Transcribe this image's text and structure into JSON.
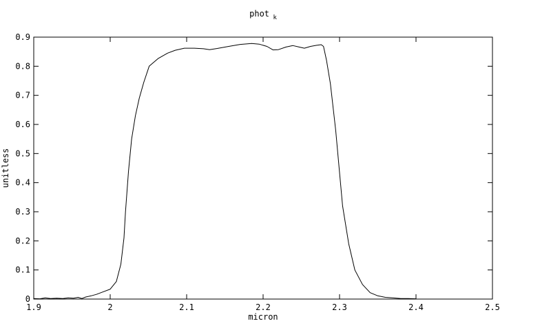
{
  "page": {
    "background": "#ffffff",
    "foreground": "#000000"
  },
  "chart_data": {
    "type": "line",
    "title_main": "phot",
    "title_sub": "k",
    "xlabel": "micron",
    "ylabel": "unitless",
    "xlim": [
      1.9,
      2.5
    ],
    "ylim": [
      0,
      0.9
    ],
    "grid": false,
    "legend": "none",
    "line_color": "#000000",
    "x_ticks": [
      {
        "value": 1.9,
        "label": "1.9"
      },
      {
        "value": 2.0,
        "label": "2"
      },
      {
        "value": 2.1,
        "label": "2.1"
      },
      {
        "value": 2.2,
        "label": "2.2"
      },
      {
        "value": 2.3,
        "label": "2.3"
      },
      {
        "value": 2.4,
        "label": "2.4"
      },
      {
        "value": 2.5,
        "label": "2.5"
      }
    ],
    "y_ticks": [
      {
        "value": 0.0,
        "label": "0"
      },
      {
        "value": 0.1,
        "label": "0.1"
      },
      {
        "value": 0.2,
        "label": "0.2"
      },
      {
        "value": 0.3,
        "label": "0.3"
      },
      {
        "value": 0.4,
        "label": "0.4"
      },
      {
        "value": 0.5,
        "label": "0.5"
      },
      {
        "value": 0.6,
        "label": "0.6"
      },
      {
        "value": 0.7,
        "label": "0.7"
      },
      {
        "value": 0.8,
        "label": "0.8"
      },
      {
        "value": 0.9,
        "label": "0.9"
      }
    ],
    "series": [
      {
        "name": "phot_k",
        "points": [
          [
            1.9,
            0.002
          ],
          [
            1.908,
            0.001
          ],
          [
            1.915,
            0.004
          ],
          [
            1.922,
            0.002
          ],
          [
            1.93,
            0.003
          ],
          [
            1.938,
            0.002
          ],
          [
            1.945,
            0.004
          ],
          [
            1.952,
            0.003
          ],
          [
            1.958,
            0.006
          ],
          [
            1.963,
            0.002
          ],
          [
            1.968,
            0.007
          ],
          [
            1.975,
            0.011
          ],
          [
            1.982,
            0.016
          ],
          [
            1.99,
            0.024
          ],
          [
            2.0,
            0.034
          ],
          [
            2.008,
            0.06
          ],
          [
            2.014,
            0.12
          ],
          [
            2.018,
            0.21
          ],
          [
            2.02,
            0.3
          ],
          [
            2.024,
            0.44
          ],
          [
            2.028,
            0.55
          ],
          [
            2.033,
            0.63
          ],
          [
            2.038,
            0.69
          ],
          [
            2.044,
            0.745
          ],
          [
            2.051,
            0.8
          ],
          [
            2.063,
            0.827
          ],
          [
            2.075,
            0.845
          ],
          [
            2.085,
            0.855
          ],
          [
            2.097,
            0.862
          ],
          [
            2.11,
            0.862
          ],
          [
            2.122,
            0.86
          ],
          [
            2.13,
            0.857
          ],
          [
            2.14,
            0.861
          ],
          [
            2.155,
            0.868
          ],
          [
            2.17,
            0.875
          ],
          [
            2.185,
            0.878
          ],
          [
            2.195,
            0.876
          ],
          [
            2.205,
            0.868
          ],
          [
            2.213,
            0.856
          ],
          [
            2.22,
            0.857
          ],
          [
            2.23,
            0.866
          ],
          [
            2.239,
            0.871
          ],
          [
            2.247,
            0.866
          ],
          [
            2.254,
            0.862
          ],
          [
            2.262,
            0.868
          ],
          [
            2.27,
            0.872
          ],
          [
            2.276,
            0.874
          ],
          [
            2.279,
            0.868
          ],
          [
            2.283,
            0.82
          ],
          [
            2.288,
            0.74
          ],
          [
            2.295,
            0.58
          ],
          [
            2.304,
            0.32
          ],
          [
            2.312,
            0.19
          ],
          [
            2.32,
            0.1
          ],
          [
            2.33,
            0.05
          ],
          [
            2.34,
            0.022
          ],
          [
            2.35,
            0.011
          ],
          [
            2.36,
            0.006
          ],
          [
            2.37,
            0.004
          ],
          [
            2.38,
            0.002
          ],
          [
            2.39,
            0.002
          ],
          [
            2.4,
            0.001
          ]
        ]
      }
    ]
  }
}
